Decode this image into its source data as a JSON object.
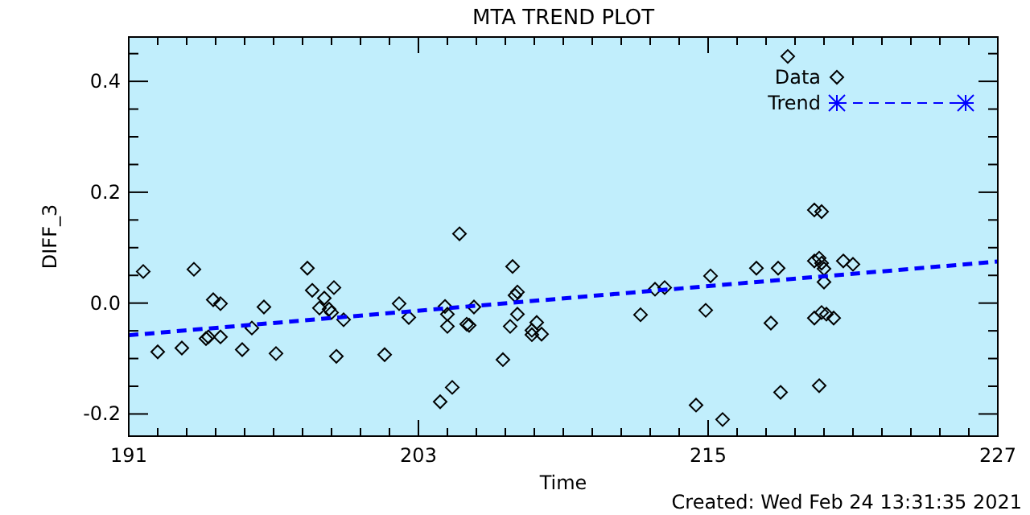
{
  "chart_data": {
    "type": "scatter",
    "title": "MTA TREND PLOT",
    "xlabel": "Time",
    "ylabel": "DIFF_3",
    "annotations": [
      "Created: Wed Feb 24 13:31:35 2021"
    ],
    "xlim": [
      191,
      227
    ],
    "xticks": [
      191,
      {
        "value": 192.2,
        "label": null
      },
      {
        "value": 193.4,
        "label": null
      },
      {
        "value": 194.6,
        "label": null
      },
      {
        "value": 195.8,
        "label": null
      },
      {
        "value": 197,
        "label": null
      },
      {
        "value": 198.2,
        "label": null
      },
      {
        "value": 199.4,
        "label": null
      },
      {
        "value": 200.6,
        "label": null
      },
      {
        "value": 201.8,
        "label": null
      },
      203,
      {
        "value": 204.2,
        "label": null
      },
      {
        "value": 205.4,
        "label": null
      },
      {
        "value": 206.6,
        "label": null
      },
      {
        "value": 207.8,
        "label": null
      },
      {
        "value": 209,
        "label": null
      },
      {
        "value": 210.2,
        "label": null
      },
      {
        "value": 211.4,
        "label": null
      },
      {
        "value": 212.6,
        "label": null
      },
      {
        "value": 213.8,
        "label": null
      },
      215,
      {
        "value": 216.2,
        "label": null
      },
      {
        "value": 217.4,
        "label": null
      },
      {
        "value": 218.6,
        "label": null
      },
      {
        "value": 219.8,
        "label": null
      },
      {
        "value": 221,
        "label": null
      },
      {
        "value": 222.2,
        "label": null
      },
      {
        "value": 223.4,
        "label": null
      },
      {
        "value": 224.6,
        "label": null
      },
      {
        "value": 225.8,
        "label": null
      },
      227
    ],
    "ylim": [
      -0.24,
      0.48
    ],
    "yticks": [
      -0.2,
      {
        "value": -0.15,
        "label": null
      },
      {
        "value": -0.1,
        "label": null
      },
      {
        "value": -0.05,
        "label": null
      },
      {
        "value": 0,
        "label": "0.0"
      },
      {
        "value": 0.05,
        "label": null
      },
      {
        "value": 0.1,
        "label": null
      },
      {
        "value": 0.15,
        "label": null
      },
      0.2,
      {
        "value": 0.25,
        "label": null
      },
      {
        "value": 0.3,
        "label": null
      },
      {
        "value": 0.35,
        "label": null
      },
      0.4,
      {
        "value": 0.45,
        "label": null
      }
    ],
    "grid": false,
    "legend": "top right",
    "series": [
      {
        "name": "Data",
        "marker": "diamond",
        "color": "#000000",
        "x": [
          191.6,
          192.2,
          193.2,
          193.7,
          194.2,
          194.3,
          194.5,
          194.8,
          194.8,
          195.7,
          196.1,
          196.6,
          197.1,
          198.4,
          198.6,
          198.9,
          199.1,
          199.3,
          199.5,
          199.4,
          199.6,
          199.9,
          201.6,
          202.2,
          202.6,
          204.7,
          204.1,
          204.2,
          204.2,
          205.0,
          205.1,
          205.3,
          206.5,
          206.9,
          207.1,
          207.0,
          207.1,
          206.8,
          207.7,
          207.9,
          208.1,
          207.7,
          204.4,
          203.9,
          212.2,
          212.8,
          213.2,
          214.9,
          215.1,
          214.5,
          215.6,
          218.3,
          217.0,
          217.9,
          217.6,
          218.0,
          219.4,
          219.7,
          219.6,
          219.4,
          219.7,
          219.8,
          219.8,
          219.4,
          219.7,
          219.9,
          220.2,
          219.6,
          220.6,
          221.0
        ],
        "values": [
          0.057,
          -0.088,
          -0.081,
          0.061,
          -0.064,
          -0.061,
          0.006,
          -0.001,
          -0.061,
          -0.084,
          -0.045,
          -0.007,
          -0.091,
          0.063,
          0.023,
          -0.009,
          0.009,
          -0.011,
          0.028,
          -0.017,
          -0.096,
          -0.03,
          -0.093,
          -0.001,
          -0.026,
          0.125,
          -0.006,
          -0.02,
          -0.042,
          -0.038,
          -0.04,
          -0.007,
          -0.102,
          0.066,
          0.02,
          0.014,
          -0.02,
          -0.042,
          -0.049,
          -0.035,
          -0.056,
          -0.057,
          -0.152,
          -0.178,
          -0.021,
          0.025,
          0.028,
          -0.013,
          0.049,
          -0.184,
          -0.21,
          0.445,
          0.063,
          0.063,
          -0.036,
          -0.161,
          0.168,
          0.165,
          0.081,
          0.076,
          0.072,
          0.038,
          0.062,
          -0.027,
          -0.017,
          -0.02,
          -0.027,
          -0.149,
          0.076,
          0.07
        ]
      },
      {
        "name": "Trend",
        "type": "line",
        "color": "#0000ff",
        "line_style": "dashed",
        "marker": "none",
        "x": [
          191,
          227
        ],
        "values": [
          -0.058,
          0.075
        ]
      }
    ]
  }
}
